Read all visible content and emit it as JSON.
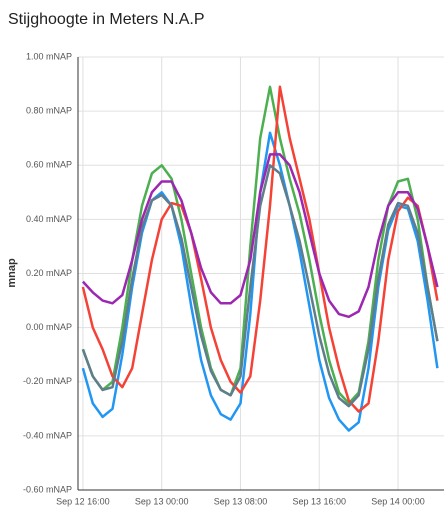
{
  "chart_data": {
    "type": "line",
    "title": "Stijghoogte in Meters N.A.P",
    "y_label": "mnap",
    "x": [
      "Sep 12 16:00",
      "Sep 12 17:00",
      "Sep 12 18:00",
      "Sep 12 19:00",
      "Sep 12 20:00",
      "Sep 12 21:00",
      "Sep 12 22:00",
      "Sep 12 23:00",
      "Sep 13 00:00",
      "Sep 13 01:00",
      "Sep 13 02:00",
      "Sep 13 03:00",
      "Sep 13 04:00",
      "Sep 13 05:00",
      "Sep 13 06:00",
      "Sep 13 07:00",
      "Sep 13 08:00",
      "Sep 13 09:00",
      "Sep 13 10:00",
      "Sep 13 11:00",
      "Sep 13 12:00",
      "Sep 13 13:00",
      "Sep 13 14:00",
      "Sep 13 15:00",
      "Sep 13 16:00",
      "Sep 13 17:00",
      "Sep 13 18:00",
      "Sep 13 19:00",
      "Sep 13 20:00",
      "Sep 13 21:00",
      "Sep 13 22:00",
      "Sep 13 23:00",
      "Sep 14 00:00",
      "Sep 14 01:00",
      "Sep 14 02:00",
      "Sep 14 03:00",
      "Sep 14 04:00"
    ],
    "series": [
      {
        "color": "#2196f3",
        "values": [
          -0.15,
          -0.28,
          -0.33,
          -0.3,
          -0.1,
          0.15,
          0.35,
          0.47,
          0.5,
          0.45,
          0.3,
          0.08,
          -0.12,
          -0.25,
          -0.32,
          -0.34,
          -0.28,
          0.05,
          0.5,
          0.72,
          0.6,
          0.45,
          0.28,
          0.08,
          -0.12,
          -0.26,
          -0.34,
          -0.38,
          -0.35,
          -0.15,
          0.15,
          0.36,
          0.45,
          0.44,
          0.32,
          0.1,
          -0.15
        ]
      },
      {
        "color": "#4caf50",
        "values": [
          -0.08,
          -0.18,
          -0.23,
          -0.2,
          0.0,
          0.25,
          0.45,
          0.57,
          0.6,
          0.55,
          0.4,
          0.2,
          0.0,
          -0.15,
          -0.23,
          -0.25,
          -0.15,
          0.3,
          0.7,
          0.89,
          0.7,
          0.55,
          0.42,
          0.25,
          0.05,
          -0.12,
          -0.24,
          -0.28,
          -0.24,
          -0.05,
          0.25,
          0.45,
          0.54,
          0.55,
          0.4,
          0.15,
          -0.05
        ]
      },
      {
        "color": "#f44336",
        "values": [
          0.15,
          0.0,
          -0.08,
          -0.18,
          -0.22,
          -0.15,
          0.05,
          0.25,
          0.4,
          0.46,
          0.45,
          0.35,
          0.18,
          0.0,
          -0.12,
          -0.2,
          -0.24,
          -0.18,
          0.1,
          0.45,
          0.89,
          0.7,
          0.55,
          0.4,
          0.2,
          0.0,
          -0.15,
          -0.27,
          -0.31,
          -0.28,
          -0.05,
          0.25,
          0.43,
          0.48,
          0.45,
          0.3,
          0.1
        ]
      },
      {
        "color": "#607d8b",
        "values": [
          -0.08,
          -0.18,
          -0.23,
          -0.22,
          -0.05,
          0.18,
          0.37,
          0.47,
          0.49,
          0.45,
          0.33,
          0.15,
          -0.03,
          -0.16,
          -0.23,
          -0.25,
          -0.18,
          0.15,
          0.45,
          0.6,
          0.57,
          0.45,
          0.32,
          0.15,
          -0.03,
          -0.17,
          -0.26,
          -0.29,
          -0.25,
          -0.08,
          0.18,
          0.38,
          0.46,
          0.45,
          0.35,
          0.15,
          -0.05
        ]
      },
      {
        "color": "#9c27b0",
        "values": [
          0.17,
          0.13,
          0.1,
          0.09,
          0.12,
          0.25,
          0.4,
          0.5,
          0.54,
          0.54,
          0.47,
          0.35,
          0.22,
          0.13,
          0.09,
          0.09,
          0.12,
          0.25,
          0.5,
          0.64,
          0.64,
          0.6,
          0.5,
          0.35,
          0.2,
          0.1,
          0.05,
          0.04,
          0.06,
          0.15,
          0.32,
          0.45,
          0.5,
          0.5,
          0.44,
          0.3,
          0.15
        ]
      }
    ],
    "xlim": [
      "Sep 12 15:30",
      "Sep 14 04:40"
    ],
    "xticks": [
      "Sep 12 16:00",
      "Sep 13 00:00",
      "Sep 13 08:00",
      "Sep 13 16:00",
      "Sep 14 00:00"
    ],
    "ylim": [
      -0.6,
      1.0
    ],
    "yticks": [
      {
        "value": -0.6,
        "label": "-0.60 mNAP"
      },
      {
        "value": -0.4,
        "label": "-0.40 mNAP"
      },
      {
        "value": -0.2,
        "label": "-0.20 mNAP"
      },
      {
        "value": 0,
        "label": "0.00 mNAP"
      },
      {
        "value": 0.2,
        "label": "0.20 mNAP"
      },
      {
        "value": 0.4,
        "label": "0.40 mNAP"
      },
      {
        "value": 0.6,
        "label": "0.60 mNAP"
      },
      {
        "value": 0.8,
        "label": "0.80 mNAP"
      },
      {
        "value": 1.0,
        "label": "1.00 mNAP"
      }
    ],
    "grid": true
  }
}
